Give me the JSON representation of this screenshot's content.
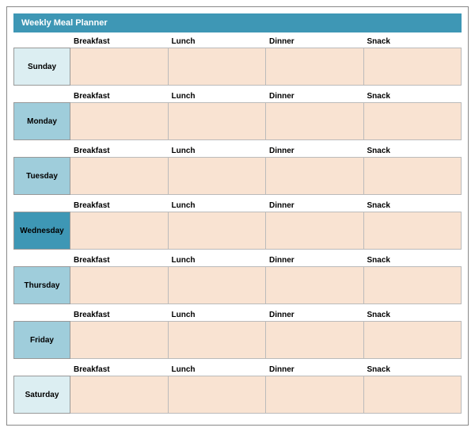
{
  "title": "Weekly Meal Planner",
  "header_bg": "#3e97b5",
  "header_fg": "#ffffff",
  "cell_bg": "#f9e3d2",
  "cell_border": "#bbbbbb",
  "day_border": "#999999",
  "meals": [
    "Breakfast",
    "Lunch",
    "Dinner",
    "Snack"
  ],
  "days": [
    {
      "name": "Sunday",
      "bg": "#dceef2"
    },
    {
      "name": "Monday",
      "bg": "#9fcddb"
    },
    {
      "name": "Tuesday",
      "bg": "#9fcddb"
    },
    {
      "name": "Wednesday",
      "bg": "#3e97b5"
    },
    {
      "name": "Thursday",
      "bg": "#9fcddb"
    },
    {
      "name": "Friday",
      "bg": "#9fcddb"
    },
    {
      "name": "Saturday",
      "bg": "#dceef2"
    }
  ]
}
